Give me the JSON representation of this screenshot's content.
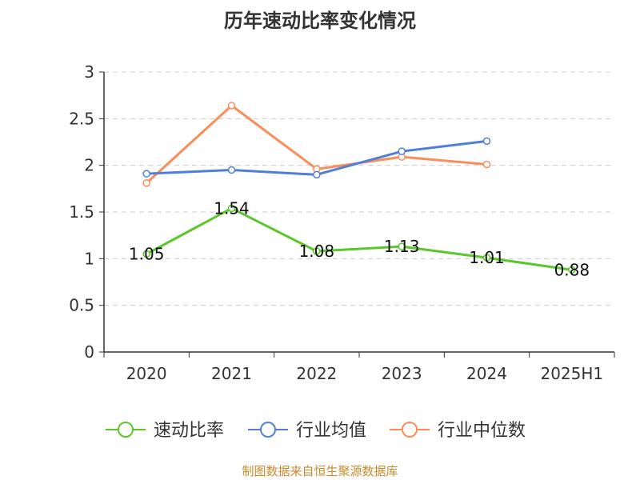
{
  "chart_data": {
    "type": "line",
    "title": "历年速动比率变化情况",
    "categories": [
      "2020",
      "2021",
      "2022",
      "2023",
      "2024",
      "2025H1"
    ],
    "y_ticks": [
      "0",
      "0.5",
      "1",
      "1.5",
      "2",
      "2.5",
      "3"
    ],
    "ylim": [
      0,
      3
    ],
    "grid": true,
    "grid_style": "dashed",
    "legend_position": "bottom",
    "series": [
      {
        "name": "速动比率",
        "color": "#5cc72a",
        "values": [
          1.05,
          1.54,
          1.08,
          1.13,
          1.01,
          0.88
        ],
        "data_labels": [
          "1.05",
          "1.54",
          "1.08",
          "1.13",
          "1.01",
          "0.88"
        ]
      },
      {
        "name": "行业均值",
        "color": "#4f7fd9",
        "values": [
          1.91,
          1.95,
          1.9,
          2.15,
          2.26,
          null
        ]
      },
      {
        "name": "行业中位数",
        "color": "#f98e5b",
        "values": [
          1.81,
          2.64,
          1.96,
          2.09,
          2.01,
          null
        ]
      }
    ]
  },
  "footer": {
    "source": "制图数据来自恒生聚源数据库"
  }
}
